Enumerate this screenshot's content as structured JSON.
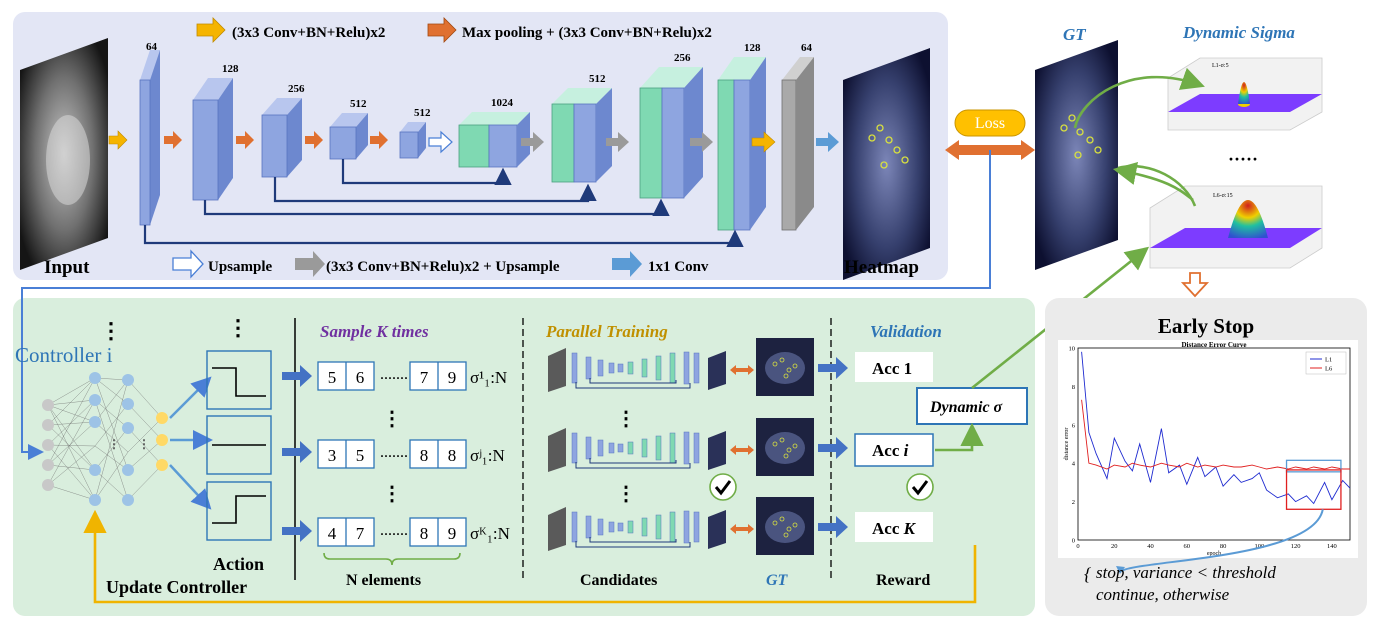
{
  "top_legend": {
    "yellow": "(3x3 Conv+BN+Relu)x2",
    "orange": "Max pooling + (3x3 Conv+BN+Relu)x2"
  },
  "bottom_legend": {
    "upsample": "Upsample",
    "gray": "(3x3 Conv+BN+Relu)x2 + Upsample",
    "blue": "1x1  Conv"
  },
  "labels": {
    "input": "Input",
    "heatmap": "Heatmap",
    "loss": "Loss",
    "gt": "GT",
    "dynamic_sigma": "Dynamic Sigma",
    "early_stop": "Early Stop",
    "controller": "Controller i",
    "action": "Action",
    "update_controller": "Update Controller",
    "sample_k": "Sample K times",
    "parallel_training": "Parallel Training",
    "validation": "Validation",
    "n_elements": "N elements",
    "candidates": "Candidates",
    "gt_bottom": "GT",
    "reward": "Reward",
    "dynamic_sigma_box": "Dynamic σ",
    "sigma_1": "σ¹₁:N",
    "sigma_j": "σʲ₁:N",
    "sigma_k": "σᴷ₁:N",
    "seq_dots": "·······"
  },
  "channels": [
    "64",
    "128",
    "256",
    "512",
    "512",
    "1024",
    "512",
    "256",
    "128",
    "64"
  ],
  "sequences": [
    {
      "a": "5",
      "b": "6",
      "c": "7",
      "d": "9"
    },
    {
      "a": "3",
      "b": "5",
      "c": "8",
      "d": "8"
    },
    {
      "a": "4",
      "b": "7",
      "c": "8",
      "d": "9"
    }
  ],
  "accuracies": [
    {
      "prefix": "Acc ",
      "idx": "1"
    },
    {
      "prefix": "Acc ",
      "idx": "i"
    },
    {
      "prefix": "Acc ",
      "idx": "K"
    }
  ],
  "gaussian_labels": {
    "top": "L1-σ:5",
    "bottom": "L6-σ:15"
  },
  "early_stop_chart": {
    "title": "Distance Error Curve",
    "xlabel": "epoch",
    "ylabel": "distance error",
    "yticks": [
      "0",
      "2",
      "4",
      "6",
      "8",
      "10"
    ],
    "xticks": [
      "0",
      "20",
      "40",
      "60",
      "80",
      "100",
      "120",
      "140"
    ],
    "legend": [
      "L1",
      "L6"
    ]
  },
  "early_stop_rule": {
    "line1": "stop, variance < threshold",
    "line2": "continue, otherwise"
  },
  "colors": {
    "top_panel": "#e3e6f5",
    "bottom_panel": "#d9eedd",
    "right_panel": "#ebebeb",
    "block_blue": "#8ea5e0",
    "block_green": "#7fd9b2",
    "arrow_yellow": "#f5b400",
    "arrow_orange": "#e07030",
    "arrow_gray": "#9a9a9a",
    "arrow_blue": "#5b9bd5",
    "purple_text": "#7030a0",
    "gold_text": "#c09000",
    "blue_text": "#2e75b6"
  },
  "chart_data": {
    "type": "line",
    "title": "Distance Error Curve",
    "xlabel": "epoch",
    "ylabel": "distance error",
    "xlim": [
      0,
      150
    ],
    "ylim": [
      0,
      10
    ],
    "series": [
      {
        "name": "L1",
        "x": [
          2,
          6,
          10,
          16,
          20,
          26,
          30,
          34,
          40,
          46,
          50,
          56,
          60,
          66,
          70,
          76,
          80,
          86,
          90,
          96,
          100,
          104,
          110,
          116,
          120,
          126,
          130,
          136,
          140,
          146,
          150
        ],
        "y": [
          9.8,
          5.6,
          4.5,
          3.2,
          5.3,
          4.1,
          3.6,
          5.0,
          3.0,
          5.8,
          3.5,
          3.9,
          2.9,
          4.3,
          3.3,
          3.8,
          2.8,
          3.4,
          3.0,
          3.2,
          3.5,
          2.6,
          2.2,
          2.4,
          2.0,
          2.3,
          1.9,
          3.0,
          2.1,
          3.1,
          2.7
        ]
      },
      {
        "name": "L6",
        "x": [
          2,
          6,
          10,
          16,
          20,
          26,
          30,
          34,
          40,
          46,
          50,
          56,
          60,
          66,
          70,
          76,
          80,
          86,
          90,
          96,
          100,
          104,
          110,
          116,
          120,
          126,
          130,
          136,
          140,
          146,
          150
        ],
        "y": [
          7.3,
          4.0,
          3.9,
          3.7,
          3.9,
          3.8,
          4.0,
          3.9,
          3.8,
          4.0,
          3.9,
          3.8,
          4.0,
          3.8,
          3.9,
          3.8,
          3.9,
          3.8,
          3.8,
          3.9,
          3.8,
          3.7,
          3.8,
          3.7,
          3.8,
          3.7,
          3.8,
          3.7,
          3.8,
          3.7,
          3.7
        ]
      }
    ]
  }
}
